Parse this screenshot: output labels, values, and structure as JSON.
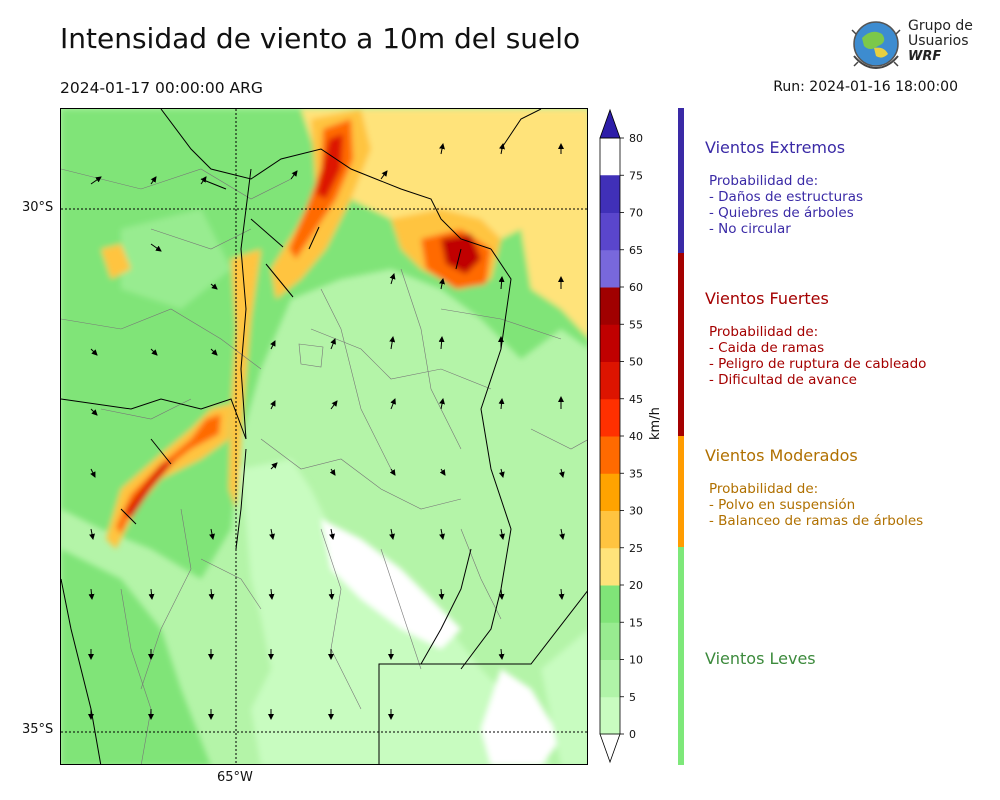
{
  "header": {
    "title": "Intensidad de viento a 10m del suelo",
    "valid_time": "2024-01-17 00:00:00 ARG",
    "run_time": "Run: 2024-01-16 18:00:00"
  },
  "logo": {
    "line1": "Grupo de",
    "line2": "Usuarios",
    "line3": "WRF"
  },
  "map": {
    "lat_labels": [
      "30°S",
      "35°S"
    ],
    "lon_labels": [
      "65°W"
    ]
  },
  "colorbar": {
    "unit": "km/h",
    "ticks": [
      "0",
      "5",
      "10",
      "15",
      "20",
      "25",
      "30",
      "35",
      "40",
      "45",
      "50",
      "55",
      "60",
      "65",
      "70",
      "75",
      "80"
    ],
    "colors": [
      "#ffffff",
      "#c8fcc0",
      "#b0f4a8",
      "#98ec90",
      "#80e478",
      "#ffe37a",
      "#ffc440",
      "#ffa300",
      "#ff6a00",
      "#ff3000",
      "#dd1400",
      "#c00000",
      "#a00000",
      "#7868dc",
      "#5a46cc",
      "#4030b8",
      "#2d1ea8"
    ]
  },
  "categories": [
    {
      "title": "Vientos Extremos",
      "color": "#3a2aa6",
      "lines": [
        "Probabilidad de:",
        "- Daños de estructuras",
        "- Quiebres de árboles",
        "- No circular"
      ]
    },
    {
      "title": "Vientos Fuertes",
      "color": "#a40000",
      "lines": [
        "Probabilidad de:",
        "- Caida de ramas",
        "- Peligro de ruptura de cableado",
        "- Dificultad de avance"
      ]
    },
    {
      "title": "Vientos Moderados",
      "color": "#b07000",
      "lines": [
        "Probabilidad de:",
        "- Polvo en suspensión",
        "- Balanceo de ramas de árboles"
      ]
    },
    {
      "title": "Vientos Leves",
      "color": "#3c8a3c",
      "lines": []
    }
  ],
  "sidebar_colors": [
    "#3a2aa6",
    "#a40000",
    "#ff9c00",
    "#7ee87a"
  ]
}
